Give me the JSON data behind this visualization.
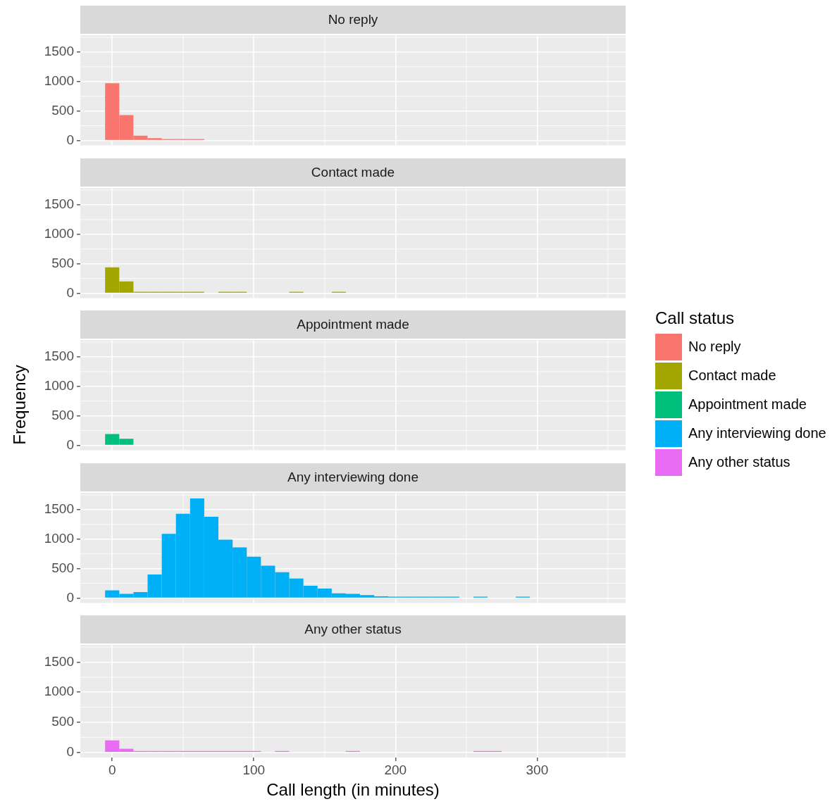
{
  "chart_data": [
    {
      "type": "histogram",
      "title": "No reply",
      "legend": "right",
      "legend_title": "Call status",
      "bins": [
        -5,
        5,
        15,
        25,
        35,
        45,
        55,
        65,
        75,
        85,
        95,
        105,
        115,
        125,
        135,
        145,
        155,
        165,
        175,
        185,
        195,
        205,
        215,
        225,
        235,
        245,
        255,
        265,
        275,
        285,
        295
      ],
      "series": [
        {
          "name": "No reply",
          "color": "#f8766d",
          "values": [
            970,
            430,
            80,
            40,
            10,
            10,
            10,
            0,
            0,
            0,
            0,
            0,
            0,
            0,
            0,
            0,
            0,
            0,
            0,
            0,
            0,
            0,
            0,
            0,
            0,
            0,
            0,
            0,
            0,
            0
          ]
        }
      ],
      "xlim": [
        -22.5,
        362.5
      ],
      "xticks": [
        0,
        100,
        200,
        300
      ],
      "ylim": [
        -85,
        1785
      ],
      "yticks": [
        0,
        500,
        1000,
        1500
      ],
      "grid": true,
      "tick_labels": "y"
    },
    {
      "type": "histogram",
      "title": "Contact made",
      "legend": "right",
      "bins": [
        -5,
        5,
        15,
        25,
        35,
        45,
        55,
        65,
        75,
        85,
        95,
        105,
        115,
        125,
        135,
        145,
        155,
        165,
        175,
        185,
        195,
        205,
        215,
        225,
        235,
        245,
        255,
        265,
        275,
        285,
        295
      ],
      "series": [
        {
          "name": "Contact made",
          "color": "#a3a500",
          "values": [
            440,
            200,
            20,
            10,
            10,
            10,
            10,
            0,
            10,
            10,
            0,
            0,
            0,
            10,
            0,
            0,
            10,
            0,
            0,
            0,
            0,
            0,
            0,
            0,
            0,
            0,
            0,
            0,
            0,
            0
          ]
        }
      ],
      "xlim": [
        -22.5,
        362.5
      ],
      "xticks": [
        0,
        100,
        200,
        300
      ],
      "ylim": [
        -85,
        1785
      ],
      "yticks": [
        0,
        500,
        1000,
        1500
      ],
      "grid": true,
      "tick_labels": "y"
    },
    {
      "type": "histogram",
      "title": "Appointment made",
      "legend": "right",
      "ylabel": "Frequency",
      "bins": [
        -5,
        5,
        15,
        25,
        35,
        45,
        55,
        65,
        75,
        85,
        95,
        105,
        115,
        125,
        135,
        145,
        155,
        165,
        175,
        185,
        195,
        205,
        215,
        225,
        235,
        245,
        255,
        265,
        275,
        285,
        295
      ],
      "series": [
        {
          "name": "Appointment made",
          "color": "#00bf7d",
          "values": [
            190,
            110,
            0,
            0,
            0,
            0,
            0,
            0,
            0,
            0,
            0,
            0,
            0,
            0,
            0,
            0,
            0,
            0,
            0,
            0,
            0,
            0,
            0,
            0,
            0,
            0,
            0,
            0,
            0,
            0
          ]
        }
      ],
      "xlim": [
        -22.5,
        362.5
      ],
      "xticks": [
        0,
        100,
        200,
        300
      ],
      "ylim": [
        -85,
        1785
      ],
      "yticks": [
        0,
        500,
        1000,
        1500
      ],
      "grid": true,
      "tick_labels": "y"
    },
    {
      "type": "histogram",
      "title": "Any interviewing done",
      "legend": "right",
      "bins": [
        -5,
        5,
        15,
        25,
        35,
        45,
        55,
        65,
        75,
        85,
        95,
        105,
        115,
        125,
        135,
        145,
        155,
        165,
        175,
        185,
        195,
        205,
        215,
        225,
        235,
        245,
        255,
        265,
        275,
        285,
        295
      ],
      "series": [
        {
          "name": "Any interviewing done",
          "color": "#00b0f6",
          "values": [
            130,
            70,
            100,
            400,
            1090,
            1430,
            1690,
            1380,
            990,
            860,
            700,
            550,
            440,
            330,
            210,
            160,
            80,
            70,
            50,
            30,
            10,
            10,
            10,
            10,
            10,
            0,
            10,
            0,
            0,
            10
          ]
        }
      ],
      "xlim": [
        -22.5,
        362.5
      ],
      "xticks": [
        0,
        100,
        200,
        300
      ],
      "ylim": [
        -85,
        1785
      ],
      "yticks": [
        0,
        500,
        1000,
        1500
      ],
      "grid": true,
      "tick_labels": "y"
    },
    {
      "type": "histogram",
      "title": "Any other status",
      "legend": "right",
      "xlabel": "Call length (in minutes)",
      "bins": [
        -5,
        5,
        15,
        25,
        35,
        45,
        55,
        65,
        75,
        85,
        95,
        105,
        115,
        125,
        135,
        145,
        155,
        165,
        175,
        185,
        195,
        205,
        215,
        225,
        235,
        245,
        255,
        265,
        275,
        285,
        295
      ],
      "series": [
        {
          "name": "Any other status",
          "color": "#e76bf3",
          "values": [
            200,
            60,
            20,
            10,
            10,
            10,
            20,
            10,
            10,
            10,
            10,
            0,
            10,
            0,
            0,
            0,
            0,
            10,
            0,
            0,
            0,
            0,
            0,
            0,
            0,
            0,
            10,
            10,
            0,
            0
          ]
        }
      ],
      "xlim": [
        -22.5,
        362.5
      ],
      "xticks": [
        0,
        100,
        200,
        300
      ],
      "ylim": [
        -85,
        1785
      ],
      "yticks": [
        0,
        500,
        1000,
        1500
      ],
      "grid": true
    }
  ]
}
